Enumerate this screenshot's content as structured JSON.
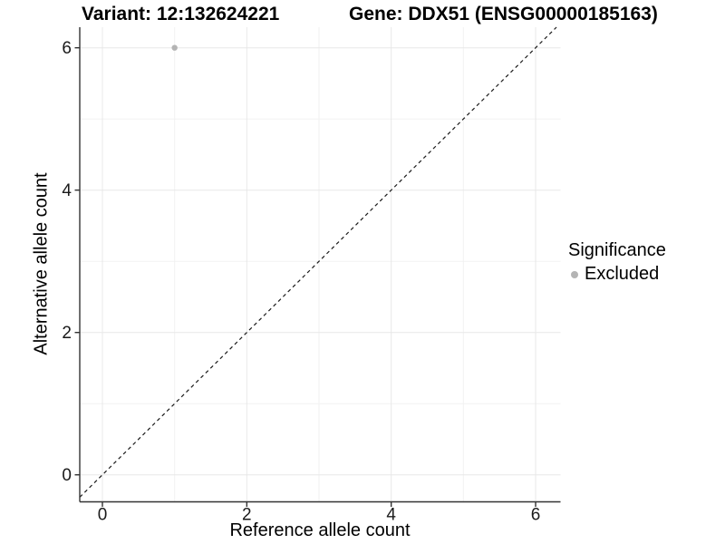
{
  "header": {
    "variant_title": "Variant: 12:132624221",
    "gene_title": "Gene: DDX51 (ENSG00000185163)"
  },
  "chart_data": {
    "type": "scatter",
    "xlabel": "Reference allele count",
    "ylabel": "Alternative allele count",
    "xlim": [
      -0.31,
      6.34
    ],
    "ylim": [
      -0.37,
      6.29
    ],
    "x_ticks": [
      0,
      2,
      4,
      6
    ],
    "y_ticks": [
      0,
      2,
      4,
      6
    ],
    "x_minor": [
      1,
      3,
      5
    ],
    "y_minor": [
      1,
      3,
      5
    ],
    "grid": true,
    "identity_line": {
      "style": "dashed",
      "slope": 1,
      "intercept": 0,
      "color": "#1a1a1a"
    },
    "series": [
      {
        "name": "Excluded",
        "color": "#b4b4b4",
        "points": [
          {
            "x": 1,
            "y": 6
          }
        ]
      }
    ],
    "legend": {
      "title": "Significance",
      "position": "right",
      "items": [
        {
          "label": "Excluded",
          "color": "#b4b4b4"
        }
      ]
    }
  },
  "colors": {
    "background": "#ffffff",
    "grid_major": "#e8e8e8",
    "grid_minor": "#f2f2f2",
    "axis_line": "#333333",
    "tick_label": "#1a1a1a",
    "point": "#b4b4b4"
  }
}
